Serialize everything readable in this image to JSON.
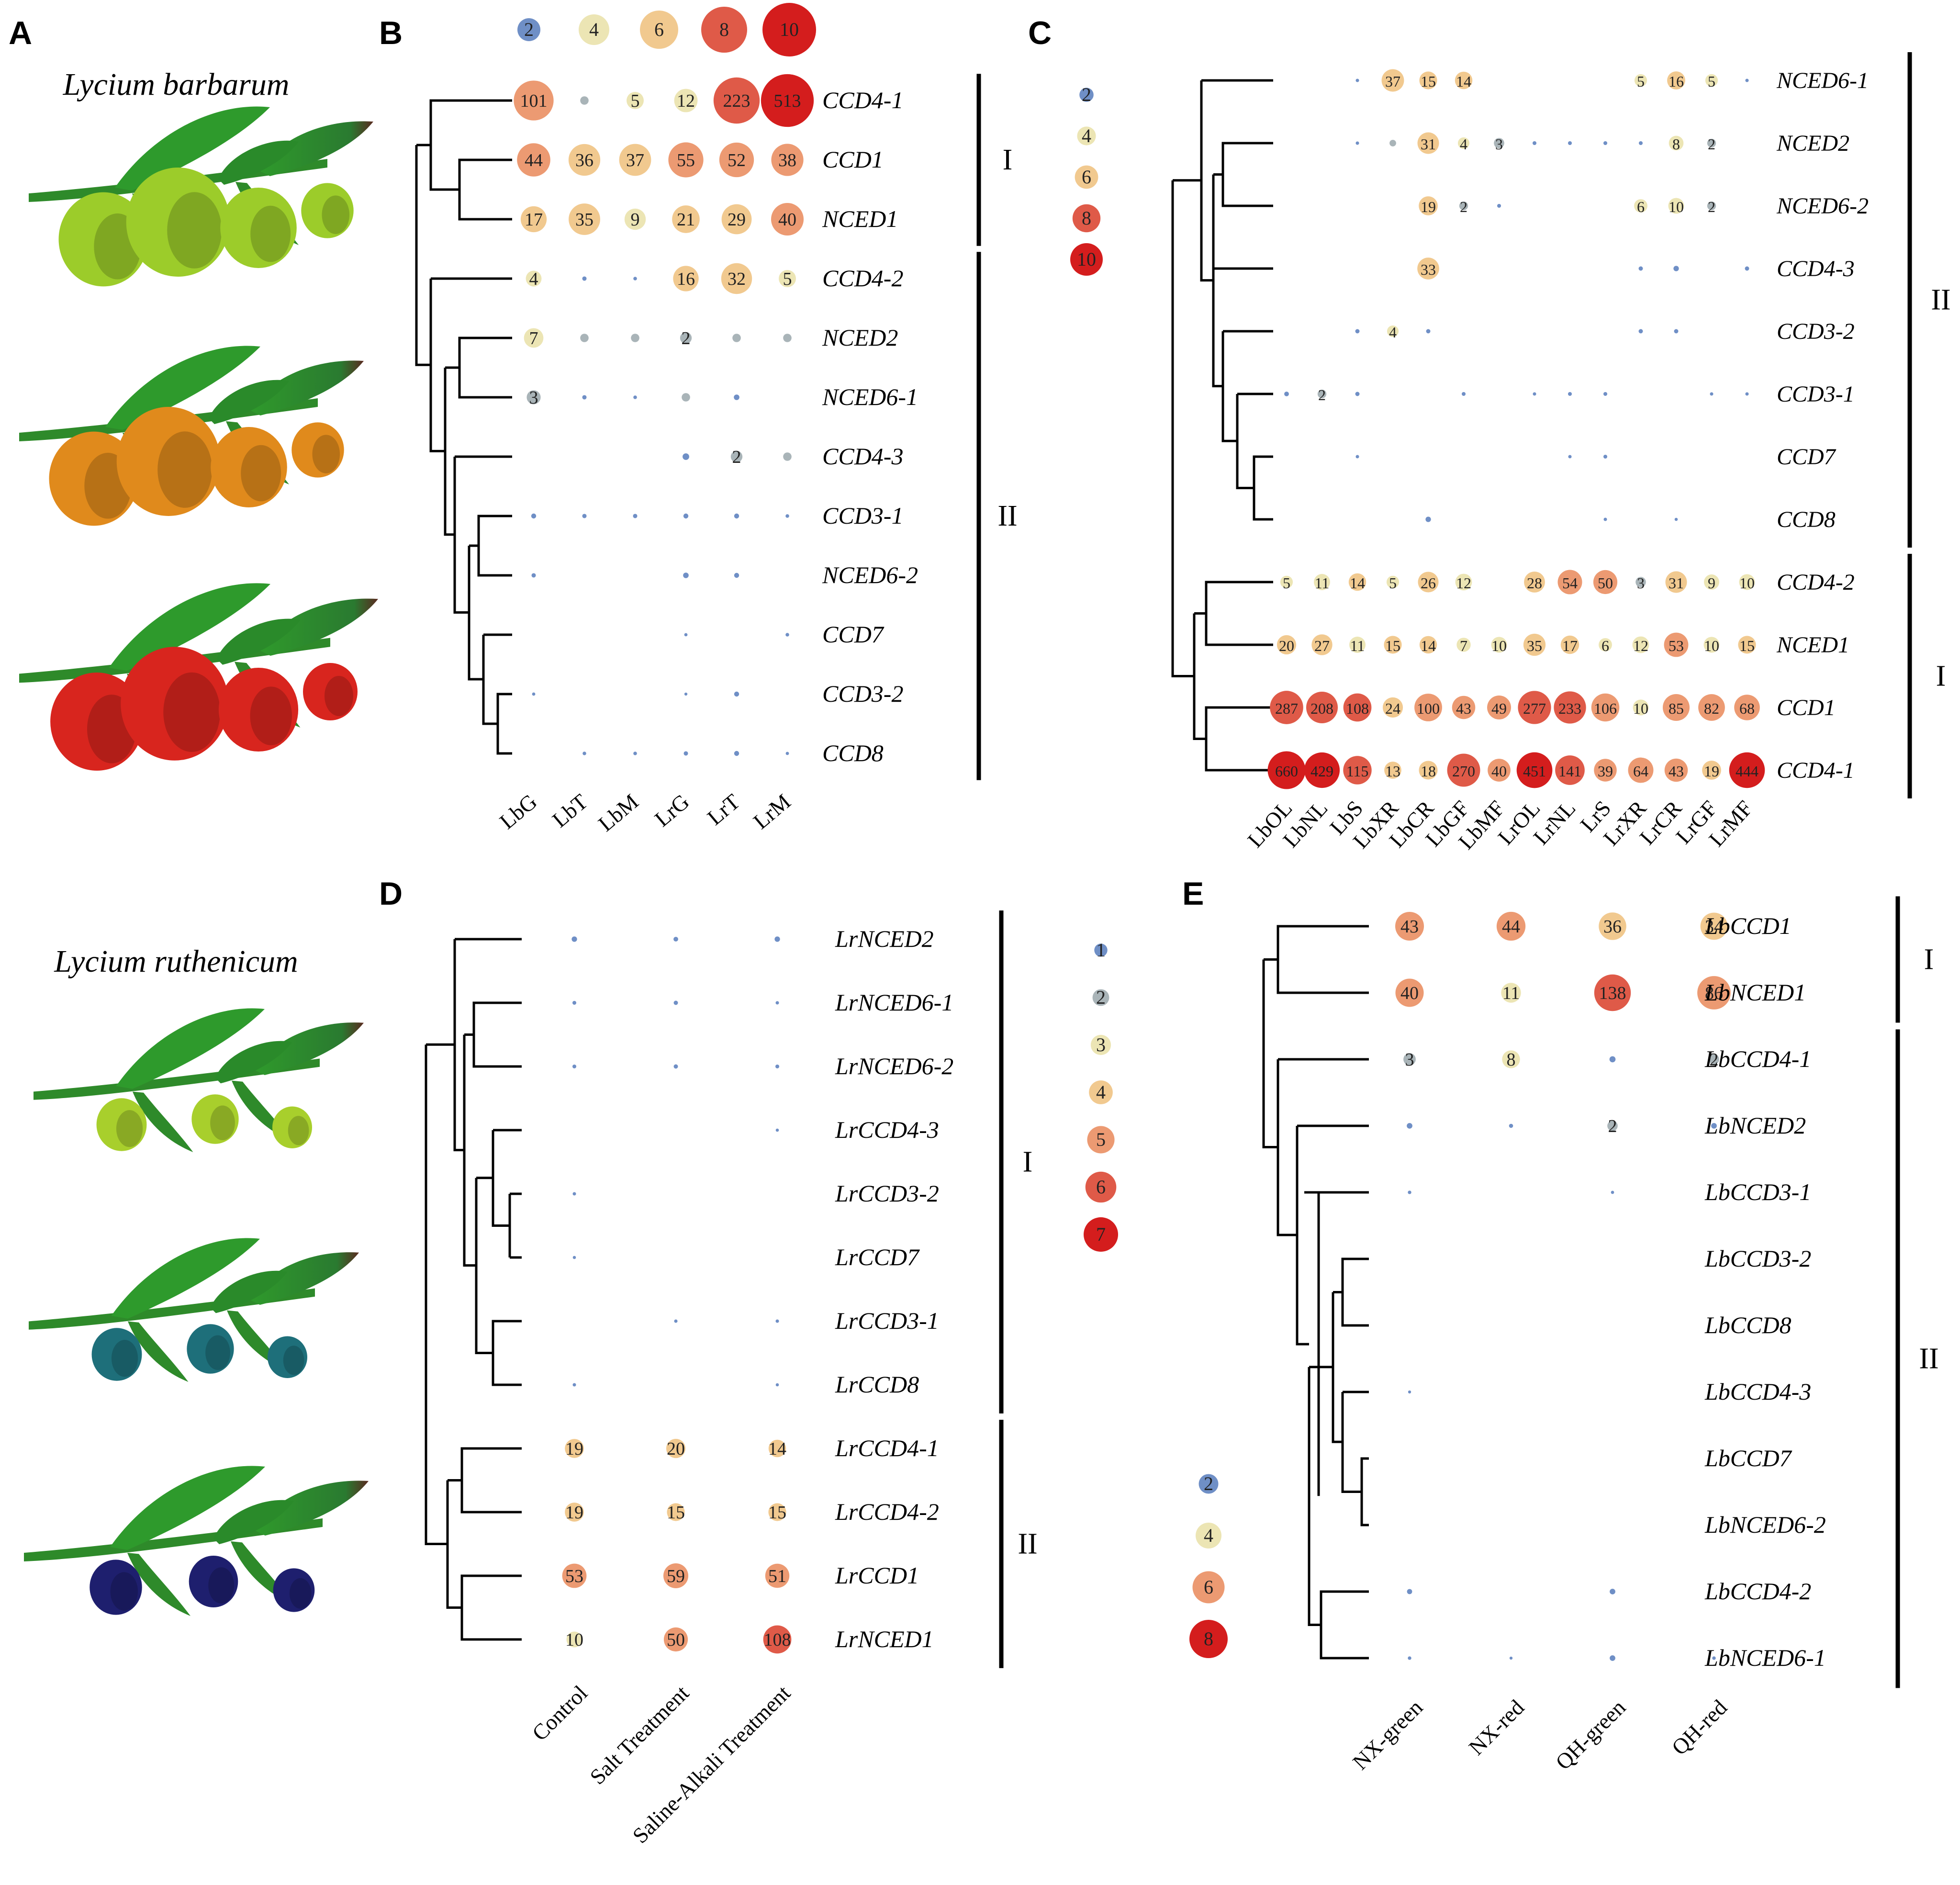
{
  "panel_labels": [
    "A",
    "B",
    "C",
    "D",
    "E"
  ],
  "species": {
    "top": "Lycium barbarum",
    "bottom": "Lycium ruthenicum"
  },
  "fruit_colors": {
    "barbarum": [
      "#9ccc2a",
      "#e08a1c",
      "#d8251e"
    ],
    "ruthenicum": [
      "#a8cf2c",
      "#1e6f7a",
      "#1e1f6e"
    ],
    "leaf": "#2e8a2a"
  },
  "color_scale": [
    "#6f8fc6",
    "#a9b4b8",
    "#ece5b4",
    "#f1c98f",
    "#ec9a72",
    "#df5a48",
    "#d41d1d"
  ],
  "chart_data": [
    {
      "panel": "B",
      "type": "bubble",
      "categories": [
        "LbG",
        "LbT",
        "LbM",
        "LrG",
        "LrT",
        "LrM"
      ],
      "genes": [
        "CCD4-1",
        "CCD1",
        "NCED1",
        "CCD4-2",
        "NCED2",
        "NCED6-1",
        "CCD4-3",
        "CCD3-1",
        "NCED6-2",
        "CCD7",
        "CCD3-2",
        "CCD8"
      ],
      "values": [
        [
          101,
          1,
          5,
          12,
          223,
          513
        ],
        [
          44,
          36,
          37,
          55,
          52,
          38
        ],
        [
          17,
          35,
          9,
          21,
          29,
          40
        ],
        [
          4,
          0.2,
          0.1,
          16,
          32,
          5
        ],
        [
          7,
          1,
          1,
          2,
          1,
          1
        ],
        [
          3,
          0.2,
          0.1,
          1,
          0.4,
          0
        ],
        [
          0,
          0,
          0,
          0.6,
          2,
          1
        ],
        [
          0.3,
          0.2,
          0.2,
          0.3,
          0.3,
          0.1
        ],
        [
          0.2,
          0,
          0,
          0.4,
          0.3,
          0
        ],
        [
          0,
          0,
          0,
          0.05,
          0,
          0.1
        ],
        [
          0.05,
          0,
          0,
          0.02,
          0.3,
          0
        ],
        [
          0,
          0.1,
          0.1,
          0.2,
          0.3,
          0.05
        ]
      ],
      "labels": [
        [
          "101",
          "",
          "5",
          "12",
          "223",
          "513"
        ],
        [
          "44",
          "36",
          "37",
          "55",
          "52",
          "38"
        ],
        [
          "17",
          "35",
          "9",
          "21",
          "29",
          "40"
        ],
        [
          "4",
          "",
          "",
          "16",
          "32",
          "5"
        ],
        [
          "7",
          "",
          "",
          "2",
          "",
          ""
        ],
        [
          "3",
          "",
          "",
          "",
          "",
          ""
        ],
        [
          "",
          "",
          "",
          "",
          "2",
          ""
        ],
        [
          "",
          "",
          "",
          "",
          "",
          ""
        ],
        [
          "",
          "",
          "",
          "",
          "",
          ""
        ],
        [
          "",
          "",
          "",
          "",
          "",
          ""
        ],
        [
          "",
          "",
          "",
          "",
          "",
          ""
        ],
        [
          "",
          "",
          "",
          "",
          "",
          ""
        ]
      ],
      "clades": [
        {
          "name": "I",
          "from": 0,
          "to": 2
        },
        {
          "name": "II",
          "from": 3,
          "to": 11
        }
      ],
      "legend": [
        "2",
        "4",
        "6",
        "8",
        "10"
      ]
    },
    {
      "panel": "C",
      "type": "bubble",
      "categories": [
        "LbOL",
        "LbNL",
        "LbS",
        "LbXR",
        "LbCR",
        "LbGF",
        "LbMF",
        "LrOL",
        "LrNL",
        "LrS",
        "LrXR",
        "LrCR",
        "LrGF",
        "LrMF"
      ],
      "genes": [
        "NCED6-1",
        "NCED2",
        "NCED6-2",
        "CCD4-3",
        "CCD3-2",
        "CCD3-1",
        "CCD7",
        "CCD8",
        "CCD4-2",
        "NCED1",
        "CCD1",
        "CCD4-1"
      ],
      "values": [
        [
          0,
          0,
          0.1,
          37,
          15,
          14,
          0,
          0,
          0,
          0,
          5,
          16,
          5,
          0.1
        ],
        [
          0,
          0,
          0.1,
          1,
          31,
          4,
          3,
          0.2,
          0.2,
          0.2,
          0.2,
          8,
          2,
          0
        ],
        [
          0,
          0,
          0,
          0,
          19,
          2,
          0.2,
          0,
          0,
          0,
          6,
          10,
          2,
          0
        ],
        [
          0,
          0,
          0,
          0,
          33,
          0,
          0,
          0,
          0,
          0,
          0.3,
          0.6,
          0,
          0.3
        ],
        [
          0,
          0,
          0.3,
          4,
          0.3,
          0,
          0,
          0,
          0,
          0,
          0.3,
          0.3,
          0,
          0
        ],
        [
          0.4,
          2,
          0.3,
          0,
          0,
          0.2,
          0,
          0.1,
          0.2,
          0.2,
          0,
          0,
          0.1,
          0.1
        ],
        [
          0,
          0,
          0.1,
          0,
          0,
          0,
          0,
          0,
          0.1,
          0.2,
          0,
          0,
          0,
          0
        ],
        [
          0,
          0,
          0,
          0,
          0.6,
          0,
          0,
          0,
          0,
          0.1,
          0,
          0.05,
          0,
          0
        ],
        [
          5,
          11,
          14,
          5,
          26,
          12,
          0,
          28,
          54,
          50,
          3,
          31,
          9,
          10
        ],
        [
          20,
          27,
          11,
          15,
          14,
          7,
          10,
          35,
          17,
          6,
          12,
          53,
          10,
          15
        ],
        [
          287,
          208,
          108,
          24,
          100,
          43,
          49,
          277,
          233,
          106,
          10,
          85,
          82,
          68
        ],
        [
          660,
          429,
          115,
          13,
          18,
          270,
          40,
          451,
          141,
          39,
          64,
          43,
          19,
          444
        ]
      ],
      "labels": [
        [
          "",
          "",
          "",
          "37",
          "15",
          "14",
          "",
          "",
          "",
          "",
          "5",
          "16",
          "5",
          ""
        ],
        [
          "",
          "",
          "",
          "",
          "31",
          "4",
          "3",
          "",
          "",
          "",
          "",
          "8",
          "2",
          ""
        ],
        [
          "",
          "",
          "",
          "",
          "19",
          "2",
          "",
          "",
          "",
          "",
          "6",
          "10",
          "2",
          ""
        ],
        [
          "",
          "",
          "",
          "",
          "33",
          "",
          "",
          "",
          "",
          "",
          "",
          "",
          "",
          ""
        ],
        [
          "",
          "",
          "",
          "4",
          "",
          "",
          "",
          "",
          "",
          "",
          "",
          "",
          "",
          ""
        ],
        [
          "",
          "2",
          "",
          "",
          "",
          "",
          "",
          "",
          "",
          "",
          "",
          "",
          "",
          ""
        ],
        [
          "",
          "",
          "",
          "",
          "",
          "",
          "",
          "",
          "",
          "",
          "",
          "",
          "",
          ""
        ],
        [
          "",
          "",
          "",
          "",
          "",
          "",
          "",
          "",
          "",
          "",
          "",
          "",
          "",
          ""
        ],
        [
          "5",
          "11",
          "14",
          "5",
          "26",
          "12",
          "",
          "28",
          "54",
          "50",
          "3",
          "31",
          "9",
          "10"
        ],
        [
          "20",
          "27",
          "11",
          "15",
          "14",
          "7",
          "10",
          "35",
          "17",
          "6",
          "12",
          "53",
          "10",
          "15"
        ],
        [
          "287",
          "208",
          "108",
          "24",
          "100",
          "43",
          "49",
          "277",
          "233",
          "106",
          "10",
          "85",
          "82",
          "68"
        ],
        [
          "660",
          "429",
          "115",
          "13",
          "18",
          "270",
          "40",
          "451",
          "141",
          "39",
          "64",
          "43",
          "19",
          "444"
        ]
      ],
      "clades": [
        {
          "name": "II",
          "from": 0,
          "to": 7
        },
        {
          "name": "I",
          "from": 8,
          "to": 11
        }
      ],
      "legend": [
        "2",
        "4",
        "6",
        "8",
        "10"
      ]
    },
    {
      "panel": "D",
      "type": "bubble",
      "categories": [
        "Control",
        "Salt Treatment",
        "Saline-Alkali Treatment"
      ],
      "genes": [
        "LrNCED2",
        "LrNCED6-1",
        "LrNCED6-2",
        "LrCCD4-3",
        "LrCCD3-2",
        "LrCCD7",
        "LrCCD3-1",
        "LrCCD8",
        "LrCCD4-1",
        "LrCCD4-2",
        "LrCCD1",
        "LrNCED1"
      ],
      "values": [
        [
          0.6,
          0.4,
          0.6
        ],
        [
          0.2,
          0.3,
          0.1
        ],
        [
          0.2,
          0.3,
          0.2
        ],
        [
          0,
          0,
          0.05
        ],
        [
          0.1,
          0,
          0
        ],
        [
          0.05,
          0,
          0
        ],
        [
          0,
          0.1,
          0.1
        ],
        [
          0.1,
          0,
          0.05
        ],
        [
          19,
          20,
          14
        ],
        [
          19,
          15,
          15
        ],
        [
          53,
          59,
          51
        ],
        [
          10,
          50,
          108
        ]
      ],
      "labels": [
        [
          "",
          "",
          ""
        ],
        [
          "",
          "",
          ""
        ],
        [
          "",
          "",
          ""
        ],
        [
          "",
          "",
          ""
        ],
        [
          "",
          "",
          ""
        ],
        [
          "",
          "",
          ""
        ],
        [
          "",
          "",
          ""
        ],
        [
          "",
          "",
          ""
        ],
        [
          "19",
          "20",
          "14"
        ],
        [
          "19",
          "15",
          "15"
        ],
        [
          "53",
          "59",
          "51"
        ],
        [
          "10",
          "50",
          "108"
        ]
      ],
      "clades": [
        {
          "name": "I",
          "from": 0,
          "to": 7
        },
        {
          "name": "II",
          "from": 8,
          "to": 11
        }
      ],
      "legend": [
        "1",
        "2",
        "3",
        "4",
        "5",
        "6",
        "7"
      ]
    },
    {
      "panel": "E",
      "type": "bubble",
      "categories": [
        "NX-green",
        "NX-red",
        "QH-green",
        "QH-red"
      ],
      "genes": [
        "LbCCD1",
        "LbNCED1",
        "LbCCD4-1",
        "LbNCED2",
        "LbCCD3-1",
        "LbCCD3-2",
        "LbCCD8",
        "LbCCD4-3",
        "LbCCD7",
        "LbNCED6-2",
        "LbCCD4-2",
        "LbNCED6-1"
      ],
      "values": [
        [
          43,
          44,
          36,
          34
        ],
        [
          40,
          11,
          138,
          86
        ],
        [
          3,
          8,
          0.6,
          2
        ],
        [
          0.5,
          0.2,
          2,
          0.5
        ],
        [
          0.1,
          0,
          0.05,
          0
        ],
        [
          0,
          0,
          0,
          0
        ],
        [
          0,
          0,
          0,
          0
        ],
        [
          0.02,
          0,
          0,
          0
        ],
        [
          0,
          0,
          0,
          0
        ],
        [
          0,
          0,
          0,
          0
        ],
        [
          0.4,
          0,
          0.5,
          0
        ],
        [
          0.1,
          0.02,
          0.5,
          0.1
        ]
      ],
      "labels": [
        [
          "43",
          "44",
          "36",
          "34"
        ],
        [
          "40",
          "11",
          "138",
          "86"
        ],
        [
          "3",
          "8",
          "",
          "2"
        ],
        [
          "",
          "",
          "2",
          ""
        ],
        [
          "",
          "",
          "",
          ""
        ],
        [
          "",
          "",
          "",
          ""
        ],
        [
          "",
          "",
          "",
          ""
        ],
        [
          "",
          "",
          "",
          ""
        ],
        [
          "",
          "",
          "",
          ""
        ],
        [
          "",
          "",
          "",
          ""
        ],
        [
          "",
          "",
          "",
          ""
        ],
        [
          "",
          "",
          "",
          ""
        ]
      ],
      "clades": [
        {
          "name": "I",
          "from": 0,
          "to": 1
        },
        {
          "name": "II",
          "from": 2,
          "to": 11
        }
      ],
      "legend": [
        "2",
        "4",
        "6",
        "8"
      ]
    }
  ]
}
